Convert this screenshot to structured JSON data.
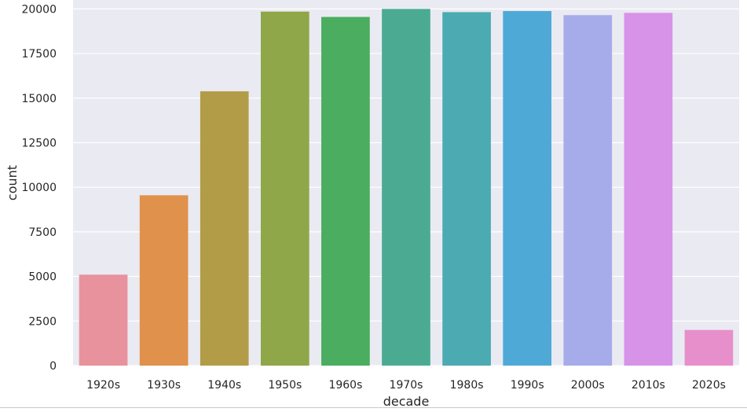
{
  "chart_data": {
    "type": "bar",
    "categories": [
      "1920s",
      "1930s",
      "1940s",
      "1950s",
      "1960s",
      "1970s",
      "1980s",
      "1990s",
      "2000s",
      "2010s",
      "2020s"
    ],
    "values": [
      5100,
      9550,
      15380,
      19850,
      19550,
      20000,
      19820,
      19880,
      19650,
      19780,
      2000
    ],
    "colors": [
      "#e8929d",
      "#e0914b",
      "#b39c48",
      "#8fa748",
      "#4aad5f",
      "#4aab92",
      "#4caab2",
      "#4ea9d6",
      "#a6abe9",
      "#d793e8",
      "#e78fcb"
    ],
    "title": "",
    "xlabel": "decade",
    "ylabel": "count",
    "ylim": [
      0,
      20500
    ],
    "yticks": [
      0,
      2500,
      5000,
      7500,
      10000,
      12500,
      15000,
      17500,
      20000
    ],
    "ytick_labels": [
      "0",
      "2500",
      "5000",
      "7500",
      "10000",
      "12500",
      "15000",
      "17500",
      "20000"
    ],
    "grid": true,
    "background_color": "#eaeaf2"
  }
}
